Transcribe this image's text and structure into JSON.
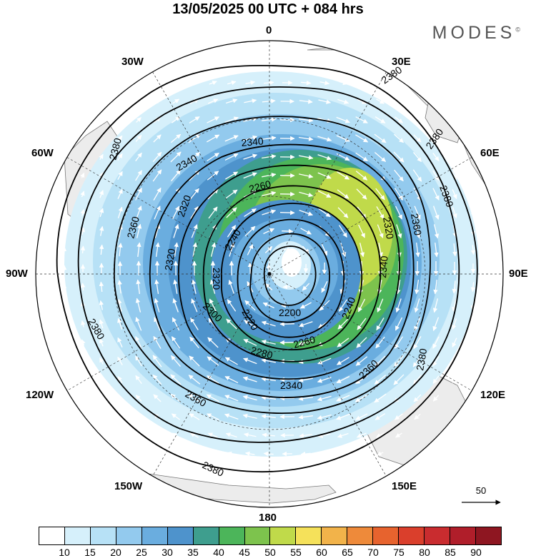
{
  "title": "13/05/2025  00 UTC  + 084 hrs",
  "brand": "MODES",
  "brand_mark": "©",
  "longitude_labels": {
    "lon_0": "0",
    "lon_30e": "30E",
    "lon_60e": "60E",
    "lon_90e": "90E",
    "lon_120e": "120E",
    "lon_150e": "150E",
    "lon_180": "180",
    "lon_150w": "150W",
    "lon_120w": "120W",
    "lon_90w": "90W",
    "lon_60w": "60W",
    "lon_30w": "30W"
  },
  "contour_labels": [
    "2380",
    "2380",
    "2380",
    "2380",
    "2380",
    "2380",
    "2380",
    "2360",
    "2360",
    "2360",
    "2360",
    "2340",
    "2340",
    "2340",
    "2320",
    "2320",
    "2320",
    "2300",
    "2280",
    "2260",
    "2260",
    "2240",
    "2240",
    "2220",
    "2200",
    "2320",
    "2340"
  ],
  "colorbar": {
    "colors": [
      "#ffffff",
      "#d6f0fb",
      "#b7e1f6",
      "#93caee",
      "#6aaddf",
      "#4e93cc",
      "#3e9e8e",
      "#4cb55a",
      "#7dc34d",
      "#c0da4a",
      "#f5e15a",
      "#f2b34a",
      "#ee8a3a",
      "#e7632e",
      "#da3f2c",
      "#c92c2f",
      "#b01e2a",
      "#8e1621"
    ],
    "ticks": [
      "10",
      "15",
      "20",
      "25",
      "30",
      "35",
      "40",
      "45",
      "50",
      "55",
      "60",
      "65",
      "70",
      "75",
      "80",
      "85",
      "90"
    ]
  },
  "reference_vector": {
    "label": "50"
  },
  "colors": {
    "land": "#ececec",
    "coast": "#777777",
    "contour": "#000000",
    "vector": "#ffffff"
  }
}
